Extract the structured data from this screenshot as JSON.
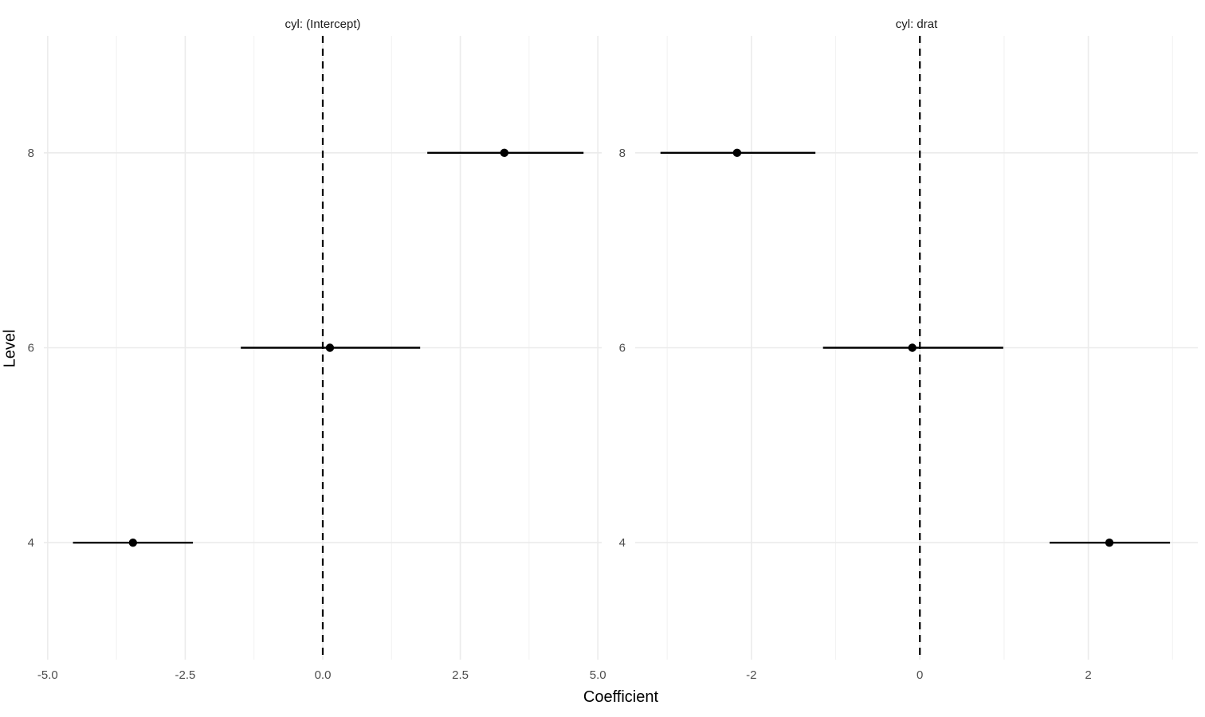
{
  "chart_data": {
    "type": "scatter",
    "style": "dot-and-whisker (point estimate with horizontal interval), faceted",
    "xlabel": "Coefficient",
    "ylabel": "Level",
    "y_levels": [
      "4",
      "6",
      "8"
    ],
    "grid": true,
    "legend": "none",
    "colors": {
      "background": "#ffffff",
      "grid_major": "#ebebeb",
      "grid_minor": "#f2f2f2",
      "point": "#000000",
      "interval": "#000000",
      "zero_line": "#000000",
      "tick_label": "#4d4d4d",
      "strip_text": "#1a1a1a",
      "axis_title": "#000000"
    },
    "facets": [
      {
        "title": "cyl: (Intercept)",
        "xlim": [
          -5.07,
          5.07
        ],
        "x_ticks_major": [
          -5.0,
          -2.5,
          0.0,
          2.5,
          5.0
        ],
        "x_tick_labels": [
          "-5.0",
          "-2.5",
          "0.0",
          "2.5",
          "5.0"
        ],
        "x_ticks_minor": [
          -3.75,
          -1.25,
          1.25,
          3.75
        ],
        "zero_line": 0,
        "points": [
          {
            "level": "8",
            "estimate": 3.3,
            "low": 1.9,
            "high": 4.74
          },
          {
            "level": "6",
            "estimate": 0.13,
            "low": -1.49,
            "high": 1.77
          },
          {
            "level": "4",
            "estimate": -3.45,
            "low": -4.54,
            "high": -2.36
          }
        ]
      },
      {
        "title": "cyl: drat",
        "xlim": [
          -3.38,
          3.3
        ],
        "x_ticks_major": [
          -2,
          0,
          2
        ],
        "x_tick_labels": [
          "-2",
          "0",
          "2"
        ],
        "x_ticks_minor": [
          -3,
          -1,
          1,
          3
        ],
        "zero_line": 0,
        "points": [
          {
            "level": "8",
            "estimate": -2.17,
            "low": -3.08,
            "high": -1.24
          },
          {
            "level": "6",
            "estimate": -0.09,
            "low": -1.15,
            "high": 0.99
          },
          {
            "level": "4",
            "estimate": 2.25,
            "low": 1.54,
            "high": 2.97
          }
        ]
      }
    ]
  }
}
